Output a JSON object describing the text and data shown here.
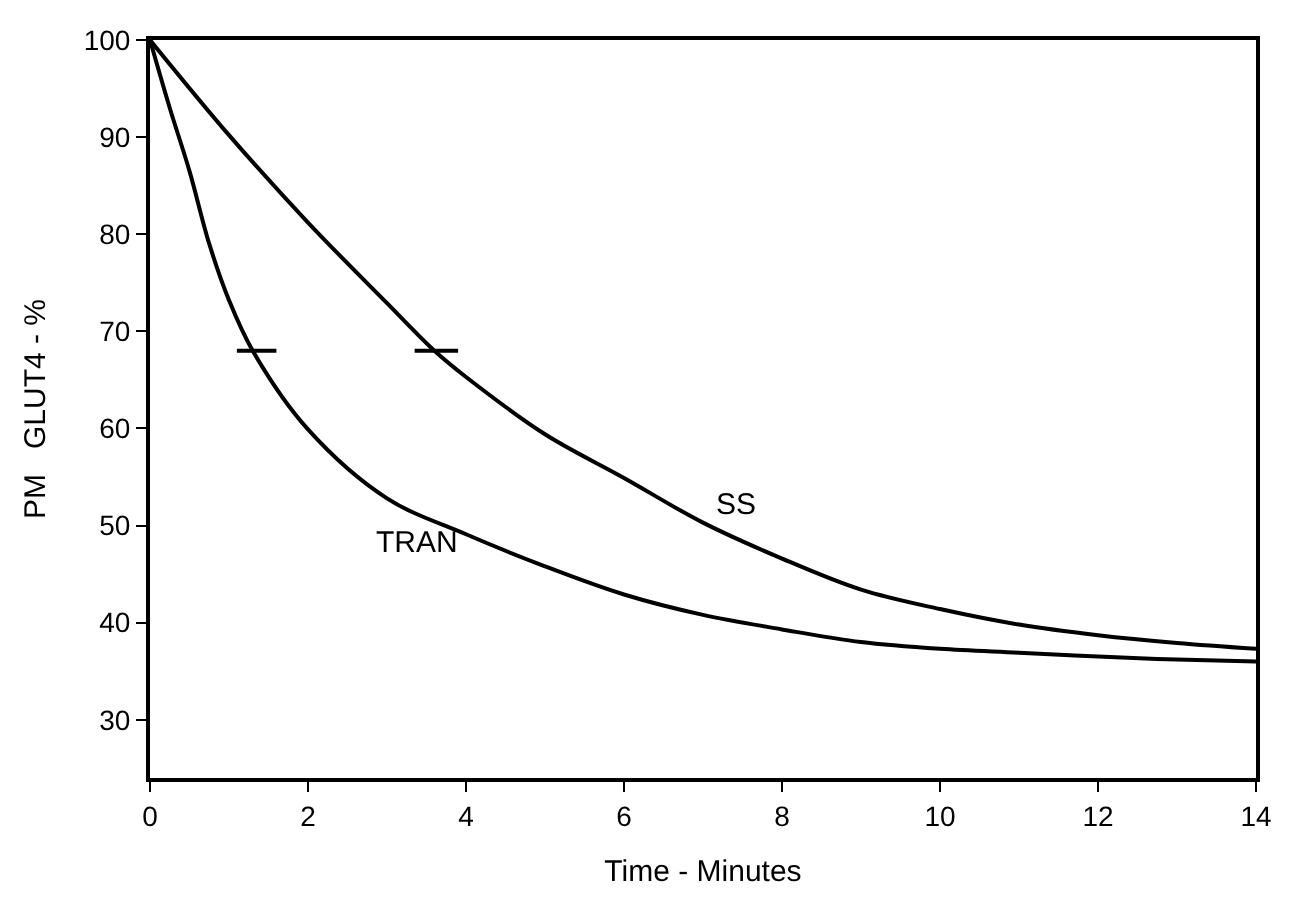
{
  "chart_data": {
    "type": "line",
    "xlabel": "Time - Minutes",
    "ylabel": "PM   GLUT4 - %",
    "xlim": [
      0,
      14
    ],
    "xticks": [
      0,
      2,
      4,
      6,
      8,
      10,
      12,
      14
    ],
    "ylim": [
      24,
      100
    ],
    "yticks": [
      30,
      40,
      50,
      60,
      70,
      80,
      90,
      100
    ],
    "marker": "none",
    "line_style": "solid",
    "series": [
      {
        "color": "#000000",
        "x": [
          0,
          1,
          2,
          3,
          3.6,
          4,
          5,
          6,
          7,
          8,
          9,
          10,
          11,
          12,
          13,
          14
        ],
        "values": [
          100,
          90.2,
          81.2,
          72.9,
          68,
          65.3,
          59.4,
          54.9,
          50.3,
          46.6,
          43.4,
          41.4,
          39.8,
          38.7,
          37.9,
          37.3
        ]
      },
      {
        "color": "#000000",
        "x": [
          0,
          0.25,
          0.5,
          0.75,
          1,
          1.3,
          2,
          3,
          4,
          5,
          6,
          7,
          8,
          9,
          10,
          11,
          12,
          13,
          14
        ],
        "values": [
          100,
          93,
          86.5,
          79,
          73.2,
          68,
          59.9,
          52.8,
          49.1,
          45.8,
          42.9,
          40.8,
          39.3,
          38,
          37.3,
          36.9,
          36.5,
          36.2,
          36
        ]
      },
      {
        "color": "#000000",
        "x": [
          1.1,
          1.6
        ],
        "values": [
          68,
          68
        ]
      },
      {
        "color": "#000000",
        "x": [
          3.35,
          3.9
        ],
        "values": [
          68,
          68
        ]
      }
    ],
    "annotations": [
      "SS",
      "TRAN"
    ]
  }
}
